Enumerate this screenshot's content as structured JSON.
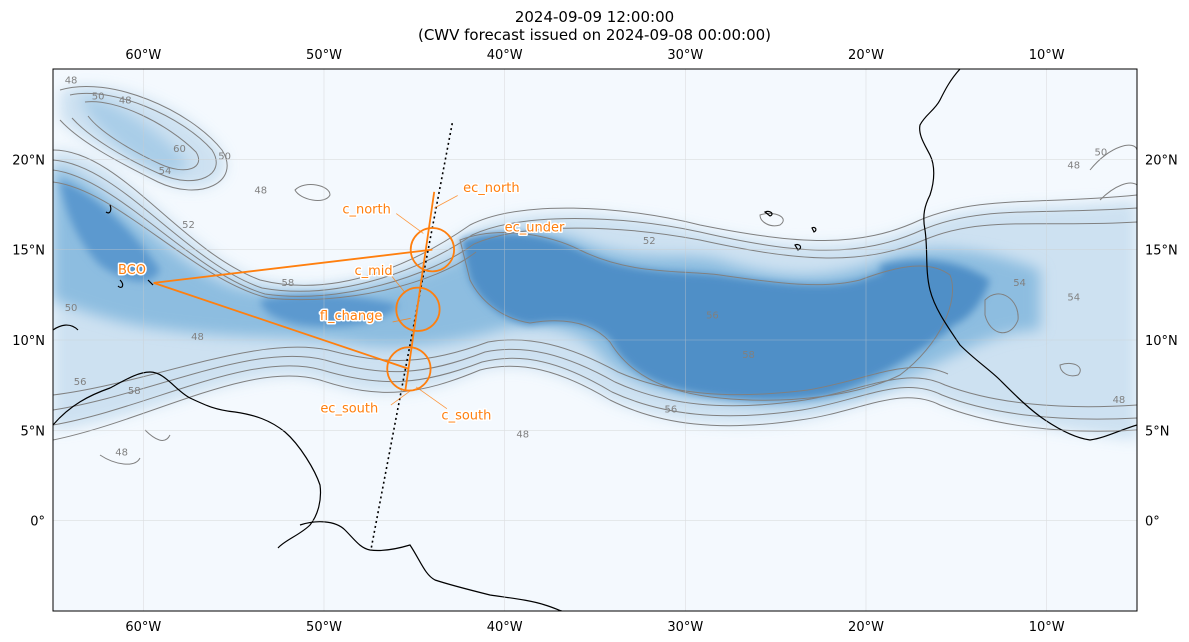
{
  "title": {
    "line1": "2024-09-09 12:00:00",
    "line2": "(CWV forecast issued on 2024-09-08 00:00:00)"
  },
  "axes": {
    "lon_labels": [
      "60°W",
      "50°W",
      "40°W",
      "30°W",
      "20°W",
      "10°W"
    ],
    "lon_values": [
      -60,
      -50,
      -40,
      -30,
      -20,
      -10
    ],
    "lat_labels": [
      "20°N",
      "15°N",
      "10°N",
      "5°N",
      "0°"
    ],
    "lat_values": [
      20,
      15,
      10,
      5,
      0
    ],
    "lon_range": [
      -65,
      -5
    ],
    "lat_range": [
      -5,
      25
    ],
    "grid": true
  },
  "colors": {
    "accent": "#ff7f0e",
    "contour": "#808080",
    "coast": "#000000",
    "cwv_low": "#f4f9fe",
    "cwv_high": "#3b7fbf"
  },
  "contour_labels": [
    {
      "text": "50",
      "lon": -62.5,
      "lat": 23.3
    },
    {
      "text": "48",
      "lon": -64.0,
      "lat": 24.2
    },
    {
      "text": "48",
      "lon": -61.0,
      "lat": 23.1
    },
    {
      "text": "60",
      "lon": -58.0,
      "lat": 20.4
    },
    {
      "text": "54",
      "lon": -58.8,
      "lat": 19.2
    },
    {
      "text": "50",
      "lon": -55.5,
      "lat": 20.0
    },
    {
      "text": "48",
      "lon": -53.5,
      "lat": 18.1
    },
    {
      "text": "52",
      "lon": -32.0,
      "lat": 15.3
    },
    {
      "text": "56",
      "lon": -28.5,
      "lat": 11.2
    },
    {
      "text": "58",
      "lon": -26.5,
      "lat": 9.0
    },
    {
      "text": "56",
      "lon": -30.8,
      "lat": 6.0
    },
    {
      "text": "48",
      "lon": -39.0,
      "lat": 4.6
    },
    {
      "text": "54",
      "lon": -11.5,
      "lat": 13.0
    },
    {
      "text": "54",
      "lon": -8.5,
      "lat": 12.2
    },
    {
      "text": "48",
      "lon": -6.0,
      "lat": 6.5
    },
    {
      "text": "50",
      "lon": -7.0,
      "lat": 20.2
    },
    {
      "text": "48",
      "lon": -8.5,
      "lat": 19.5
    },
    {
      "text": "48",
      "lon": -57.0,
      "lat": 10.0
    },
    {
      "text": "50",
      "lon": -64.0,
      "lat": 11.6
    },
    {
      "text": "56",
      "lon": -63.5,
      "lat": 7.5
    },
    {
      "text": "58",
      "lon": -60.5,
      "lat": 7.0
    },
    {
      "text": "48",
      "lon": -61.2,
      "lat": 3.6
    },
    {
      "text": "52",
      "lon": -57.5,
      "lat": 16.2
    },
    {
      "text": "58",
      "lon": -52.0,
      "lat": 13.0
    }
  ],
  "flight": {
    "BCO": {
      "label": "BCO",
      "lon": -59.43,
      "lat": 13.16
    },
    "circles": [
      {
        "label": "c_north",
        "lon": -44.0,
        "lat": 15.0
      },
      {
        "label": "c_mid",
        "lon": -44.8,
        "lat": 11.7
      },
      {
        "label": "c_south",
        "lon": -45.3,
        "lat": 8.4
      }
    ],
    "extra_labels": [
      {
        "label": "ec_north",
        "lon": -42.3,
        "lat": 18.2
      },
      {
        "label": "ec_under",
        "lon": -40.0,
        "lat": 16.0
      },
      {
        "label": "fl_change",
        "lon": -48.5,
        "lat": 11.1
      },
      {
        "label": "ec_south",
        "lon": -48.6,
        "lat": 6.0
      }
    ],
    "track": [
      [
        -42.9,
        22.0
      ],
      [
        -47.4,
        -1.6
      ]
    ]
  }
}
